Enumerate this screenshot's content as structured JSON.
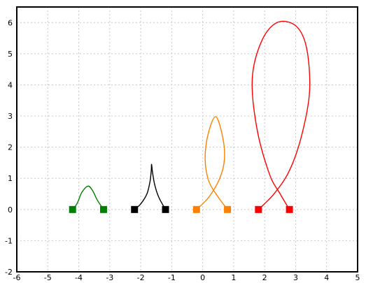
{
  "chart_data": {
    "type": "line",
    "title": "",
    "xlabel": "",
    "ylabel": "",
    "xlim": [
      -6,
      5
    ],
    "ylim": [
      -2,
      6.5
    ],
    "grid": true,
    "x_ticks": [
      "-6",
      "-5",
      "-4",
      "-3",
      "-2",
      "-1",
      "0",
      "1",
      "2",
      "3",
      "4",
      "5"
    ],
    "y_ticks": [
      "-2",
      "-1",
      "0",
      "1",
      "2",
      "3",
      "4",
      "5",
      "6"
    ],
    "series": [
      {
        "color": "#008000",
        "points": [
          [
            -4.2,
            0
          ],
          [
            -4.05,
            0.2
          ],
          [
            -3.9,
            0.55
          ],
          [
            -3.7,
            0.75
          ],
          [
            -3.55,
            0.6
          ],
          [
            -3.4,
            0.3
          ],
          [
            -3.2,
            0
          ]
        ],
        "endpoints": [
          [
            -4.2,
            0
          ],
          [
            -3.2,
            0
          ]
        ]
      },
      {
        "color": "#000000",
        "points": [
          [
            -2.2,
            0
          ],
          [
            -2.0,
            0.18
          ],
          [
            -1.8,
            0.5
          ],
          [
            -1.7,
            0.9
          ],
          [
            -1.66,
            1.25
          ],
          [
            -1.65,
            1.45
          ],
          [
            -1.62,
            1.2
          ],
          [
            -1.55,
            0.8
          ],
          [
            -1.42,
            0.4
          ],
          [
            -1.2,
            0
          ]
        ],
        "endpoints": [
          [
            -2.2,
            0
          ],
          [
            -1.2,
            0
          ]
        ]
      },
      {
        "color": "#ff8000",
        "points": [
          [
            -0.2,
            0
          ],
          [
            0.2,
            0.4
          ],
          [
            0.55,
            1.0
          ],
          [
            0.7,
            1.6
          ],
          [
            0.65,
            2.3
          ],
          [
            0.42,
            2.98
          ],
          [
            0.17,
            2.4
          ],
          [
            0.08,
            1.6
          ],
          [
            0.2,
            0.9
          ],
          [
            0.5,
            0.4
          ],
          [
            0.8,
            0
          ]
        ],
        "endpoints": [
          [
            -0.2,
            0
          ],
          [
            0.8,
            0
          ]
        ]
      },
      {
        "color": "#ff0000",
        "points": [
          [
            1.8,
            0
          ],
          [
            2.3,
            0.5
          ],
          [
            2.8,
            1.25
          ],
          [
            3.2,
            2.4
          ],
          [
            3.45,
            3.8
          ],
          [
            3.35,
            5.2
          ],
          [
            3.0,
            5.9
          ],
          [
            2.4,
            6.0
          ],
          [
            1.9,
            5.4
          ],
          [
            1.6,
            4.2
          ],
          [
            1.75,
            2.6
          ],
          [
            2.15,
            1.15
          ],
          [
            2.5,
            0.5
          ],
          [
            2.8,
            0
          ]
        ],
        "endpoints": [
          [
            1.8,
            0
          ],
          [
            2.8,
            0
          ]
        ]
      }
    ]
  }
}
